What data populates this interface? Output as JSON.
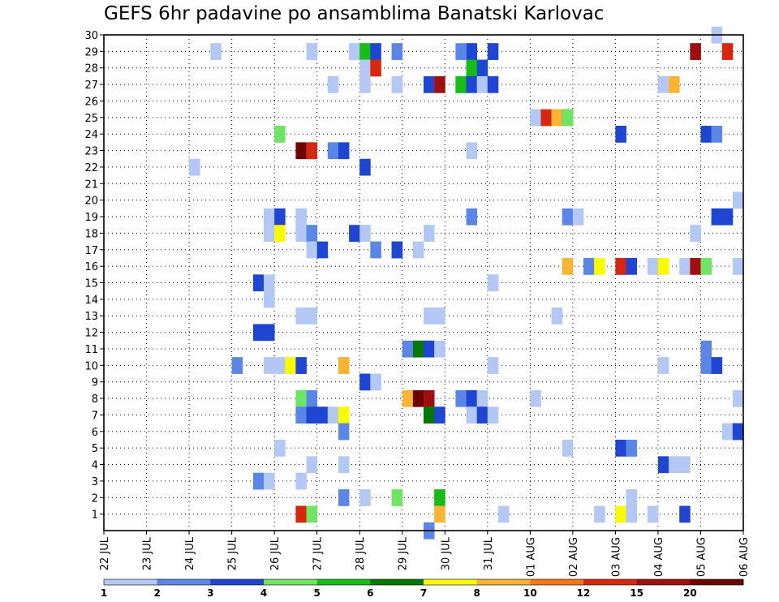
{
  "chart_data": {
    "type": "heatmap",
    "title": "GEFS 6hr padavine po ansamblima Banatski Karlovac",
    "xlabel": "",
    "ylabel": "",
    "y_ticks": [
      "1",
      "2",
      "3",
      "4",
      "5",
      "6",
      "7",
      "8",
      "9",
      "10",
      "11",
      "12",
      "13",
      "14",
      "15",
      "16",
      "17",
      "18",
      "19",
      "20",
      "21",
      "22",
      "23",
      "24",
      "25",
      "26",
      "27",
      "28",
      "29",
      "30"
    ],
    "x_ticks": [
      "22 JUL",
      "23 JUL",
      "24 JUL",
      "25 JUL",
      "26 JUL",
      "27 JUL",
      "28 JUL",
      "29 JUL",
      "30 JUL",
      "31 JUL",
      "01 AUG",
      "02 AUG",
      "03 AUG",
      "04 AUG",
      "05 AUG",
      "06 AUG"
    ],
    "x_step_hours": 6,
    "colorbar": {
      "levels": [
        "1",
        "2",
        "3",
        "4",
        "5",
        "6",
        "7",
        "8",
        "10",
        "12",
        "15",
        "20"
      ],
      "colors": [
        "#b4c8f5",
        "#5a87e6",
        "#1e46d2",
        "#6ee664",
        "#14be14",
        "#057805",
        "#fafa00",
        "#fab432",
        "#f57814",
        "#d7280f",
        "#a00f0f",
        "#6e0505"
      ]
    },
    "cells": [
      [
        30,
        0.95,
        1
      ],
      [
        29,
        0.97,
        10
      ],
      [
        29,
        0.93,
        11
      ],
      [
        29,
        0.57,
        3
      ],
      [
        29,
        0.17,
        1
      ],
      [
        29,
        0.32,
        1
      ],
      [
        29,
        0.39,
        1
      ],
      [
        29,
        0.4,
        5
      ],
      [
        29,
        0.43,
        3
      ],
      [
        29,
        0.45,
        2
      ],
      [
        29,
        0.55,
        2
      ],
      [
        29,
        0.6,
        3
      ],
      [
        28,
        0.4,
        1
      ],
      [
        28,
        0.42,
        10
      ],
      [
        28,
        0.57,
        5
      ],
      [
        28,
        0.59,
        3
      ],
      [
        27,
        0.36,
        1
      ],
      [
        27,
        0.4,
        1
      ],
      [
        27,
        0.45,
        1
      ],
      [
        27,
        0.46,
        1
      ],
      [
        27,
        0.5,
        3
      ],
      [
        27,
        0.52,
        8
      ],
      [
        27,
        0.53,
        11
      ],
      [
        27,
        0.55,
        5
      ],
      [
        27,
        0.56,
        5
      ],
      [
        27,
        0.57,
        3
      ],
      [
        27,
        0.59,
        1
      ],
      [
        27,
        0.6,
        3
      ],
      [
        27,
        0.88,
        1
      ],
      [
        27,
        0.89,
        8
      ],
      [
        25,
        0.67,
        1
      ],
      [
        25,
        0.68,
        1
      ],
      [
        25,
        0.69,
        10
      ],
      [
        25,
        0.7,
        4
      ],
      [
        25,
        0.71,
        8
      ],
      [
        25,
        0.72,
        11
      ],
      [
        25,
        0.73,
        4
      ],
      [
        24,
        0.28,
        4
      ],
      [
        24,
        0.8,
        3
      ],
      [
        24,
        0.94,
        3
      ],
      [
        24,
        0.95,
        2
      ],
      [
        23,
        0.31,
        12
      ],
      [
        23,
        0.32,
        1
      ],
      [
        23,
        0.33,
        10
      ],
      [
        23,
        0.36,
        2
      ],
      [
        23,
        0.37,
        3
      ],
      [
        23,
        0.58,
        1
      ],
      [
        22,
        0.14,
        1
      ],
      [
        22,
        0.4,
        3
      ],
      [
        20,
        0.99,
        1
      ],
      [
        19,
        0.26,
        1
      ],
      [
        19,
        0.28,
        3
      ],
      [
        19,
        0.3,
        1
      ],
      [
        19,
        0.31,
        1
      ],
      [
        19,
        0.57,
        2
      ],
      [
        19,
        0.73,
        2
      ],
      [
        19,
        0.74,
        1
      ],
      [
        19,
        0.96,
        3
      ],
      [
        19,
        0.98,
        3
      ],
      [
        18,
        0.26,
        1
      ],
      [
        18,
        0.28,
        7
      ],
      [
        18,
        0.3,
        1
      ],
      [
        18,
        0.32,
        4
      ],
      [
        18,
        0.33,
        2
      ],
      [
        18,
        0.39,
        3
      ],
      [
        18,
        0.41,
        1
      ],
      [
        18,
        0.51,
        1
      ],
      [
        18,
        0.92,
        1
      ],
      [
        17,
        0.32,
        1
      ],
      [
        17,
        0.34,
        3
      ],
      [
        17,
        0.43,
        2
      ],
      [
        17,
        0.45,
        5
      ],
      [
        17,
        0.46,
        3
      ],
      [
        17,
        0.49,
        1
      ],
      [
        16,
        0.73,
        8
      ],
      [
        16,
        0.75,
        1
      ],
      [
        16,
        0.76,
        2
      ],
      [
        16,
        0.78,
        7
      ],
      [
        16,
        0.8,
        2
      ],
      [
        16,
        0.81,
        10
      ],
      [
        16,
        0.82,
        3
      ],
      [
        16,
        0.86,
        1
      ],
      [
        16,
        0.88,
        7
      ],
      [
        16,
        0.91,
        1
      ],
      [
        16,
        0.93,
        11
      ],
      [
        16,
        0.94,
        4
      ],
      [
        16,
        0.99,
        1
      ],
      [
        15,
        0.24,
        3
      ],
      [
        15,
        0.26,
        1
      ],
      [
        15,
        0.6,
        1
      ],
      [
        15,
        0.61,
        1
      ],
      [
        14,
        0.26,
        1
      ],
      [
        13,
        0.31,
        1
      ],
      [
        13,
        0.33,
        1
      ],
      [
        13,
        0.5,
        1
      ],
      [
        13,
        0.52,
        1
      ],
      [
        13,
        0.7,
        1
      ],
      [
        12,
        0.24,
        3
      ],
      [
        12,
        0.26,
        3
      ],
      [
        11,
        0.47,
        2
      ],
      [
        11,
        0.49,
        6
      ],
      [
        11,
        0.5,
        3
      ],
      [
        11,
        0.52,
        1
      ],
      [
        11,
        0.94,
        2
      ],
      [
        10,
        0.21,
        2
      ],
      [
        10,
        0.26,
        1
      ],
      [
        10,
        0.28,
        1
      ],
      [
        10,
        0.29,
        7
      ],
      [
        10,
        0.31,
        3
      ],
      [
        10,
        0.37,
        4
      ],
      [
        10,
        0.38,
        8
      ],
      [
        10,
        0.6,
        1
      ],
      [
        10,
        0.88,
        1
      ],
      [
        10,
        0.94,
        2
      ],
      [
        10,
        0.96,
        3
      ],
      [
        9,
        0.4,
        3
      ],
      [
        9,
        0.42,
        1
      ],
      [
        8,
        0.31,
        4
      ],
      [
        8,
        0.32,
        2
      ],
      [
        8,
        0.47,
        8
      ],
      [
        8,
        0.49,
        12
      ],
      [
        8,
        0.5,
        11
      ],
      [
        8,
        0.56,
        2
      ],
      [
        8,
        0.57,
        3
      ],
      [
        8,
        0.59,
        1
      ],
      [
        8,
        0.67,
        1
      ],
      [
        8,
        0.99,
        1
      ],
      [
        7,
        0.31,
        2
      ],
      [
        7,
        0.32,
        3
      ],
      [
        7,
        0.34,
        3
      ],
      [
        7,
        0.35,
        1
      ],
      [
        7,
        0.37,
        7
      ],
      [
        7,
        0.5,
        2
      ],
      [
        7,
        0.51,
        6
      ],
      [
        7,
        0.53,
        3
      ],
      [
        7,
        0.57,
        1
      ],
      [
        7,
        0.59,
        3
      ],
      [
        7,
        0.6,
        1
      ],
      [
        6,
        0.38,
        2
      ],
      [
        6,
        0.97,
        1
      ],
      [
        6,
        0.99,
        3
      ],
      [
        5,
        0.27,
        1
      ],
      [
        5,
        0.73,
        1
      ],
      [
        5,
        0.8,
        3
      ],
      [
        5,
        0.82,
        1
      ],
      [
        5,
        0.83,
        2
      ],
      [
        4,
        0.32,
        1
      ],
      [
        4,
        0.38,
        1
      ],
      [
        4,
        0.87,
        3
      ],
      [
        4,
        0.89,
        1
      ],
      [
        4,
        0.91,
        1
      ],
      [
        3,
        0.24,
        2
      ],
      [
        3,
        0.26,
        1
      ],
      [
        3,
        0.31,
        1
      ],
      [
        2,
        0.38,
        2
      ],
      [
        2,
        0.4,
        1
      ],
      [
        2,
        0.45,
        4
      ],
      [
        2,
        0.52,
        5
      ],
      [
        2,
        0.82,
        1
      ],
      [
        1,
        0.31,
        10
      ],
      [
        1,
        0.32,
        4
      ],
      [
        1,
        0.52,
        8
      ],
      [
        1,
        0.63,
        1
      ],
      [
        1,
        0.78,
        1
      ],
      [
        1,
        0.8,
        7
      ],
      [
        1,
        0.82,
        1
      ],
      [
        1,
        0.86,
        1
      ],
      [
        1,
        0.9,
        3
      ],
      [
        0,
        0.5,
        2
      ]
    ]
  }
}
